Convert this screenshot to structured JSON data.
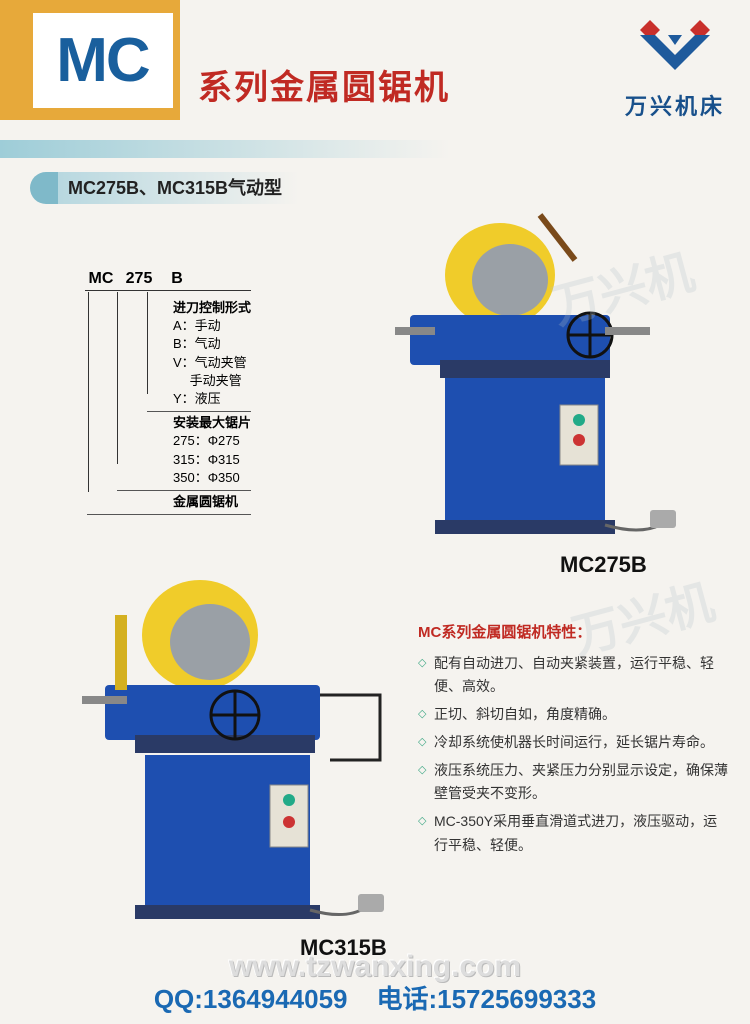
{
  "header": {
    "mc_label": "MC",
    "title": "系列金属圆锯机",
    "brand": "万兴机床",
    "logo_colors": {
      "blue": "#1e5a9c",
      "red": "#c9302c"
    }
  },
  "subtitle": "MC275B、MC315B气动型",
  "model_key": {
    "code": [
      "MC",
      "275",
      "B"
    ],
    "groups": [
      {
        "align": "right",
        "title": "进刀控制形式",
        "lines": [
          "A：手动",
          "B：气动",
          "V：气动夹管",
          "　 手动夹管",
          "Y：液压"
        ]
      },
      {
        "align": "mid",
        "title": "安装最大锯片",
        "lines": [
          "275：Φ275",
          "315：Φ315",
          "350：Φ350"
        ]
      },
      {
        "align": "left",
        "title": "金属圆锯机",
        "lines": []
      }
    ]
  },
  "labels": {
    "model1": "MC275B",
    "model2": "MC315B"
  },
  "features": {
    "title": "MC系列金属圆锯机特性：",
    "items": [
      "配有自动进刀、自动夹紧装置，运行平稳、轻便、高效。",
      "正切、斜切自如，角度精确。",
      "冷却系统使机器长时间运行，延长锯片寿命。",
      "液压系统压力、夹紧压力分别显示设定，确保薄壁管受夹不变形。",
      "MC-350Y采用垂直滑道式进刀，液压驱动，运行平稳、轻便。"
    ]
  },
  "footer": {
    "url": "www.tzwanxing.com",
    "qq_label": "QQ:",
    "qq": "1364944059",
    "phone_label": "电话:",
    "phone": "15725699333"
  },
  "machine_colors": {
    "body": "#1e4fb0",
    "guard": "#f0cc2a",
    "base": "#2a3a66",
    "panel": "#e6e2d6",
    "metal": "#9aa0a6"
  }
}
